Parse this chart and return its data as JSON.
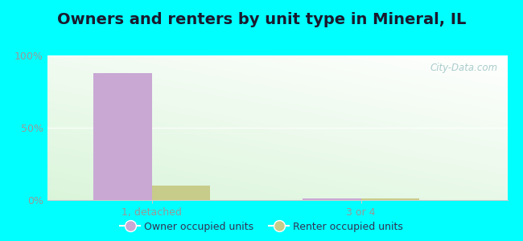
{
  "title": "Owners and renters by unit type in Mineral, IL",
  "categories": [
    "1, detached",
    "3 or 4"
  ],
  "owner_values": [
    88,
    1
  ],
  "renter_values": [
    10,
    1
  ],
  "owner_color": "#c9a8d4",
  "renter_color": "#c8cc8a",
  "ylim": [
    0,
    100
  ],
  "yticks": [
    0,
    50,
    100
  ],
  "yticklabels": [
    "0%",
    "50%",
    "100%"
  ],
  "bar_width": 0.28,
  "title_fontsize": 14,
  "legend_labels": [
    "Owner occupied units",
    "Renter occupied units"
  ],
  "outer_background": "#00ffff",
  "watermark": "City-Data.com",
  "watermark_color": "#aacccc",
  "text_color": "#333355",
  "tick_color": "#999999"
}
